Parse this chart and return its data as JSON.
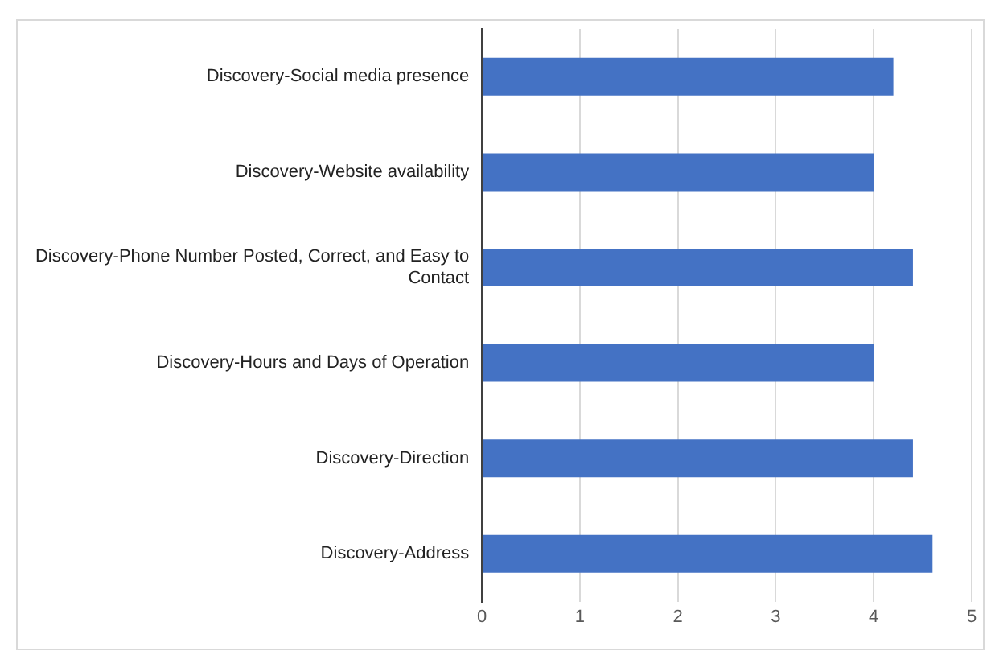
{
  "chart_data": {
    "type": "bar",
    "orientation": "horizontal",
    "categories": [
      "Discovery-Social media presence",
      "Discovery-Website availability",
      "Discovery-Phone Number Posted, Correct, and Easy to Contact",
      "Discovery-Hours and Days of Operation",
      "Discovery-Direction",
      "Discovery-Address"
    ],
    "values": [
      4.2,
      4.0,
      4.4,
      4.0,
      4.4,
      4.6
    ],
    "color": "#4472c4",
    "xlim": [
      0,
      5
    ],
    "xticks": [
      0,
      1,
      2,
      3,
      4,
      5
    ],
    "grid": "x",
    "legend": false
  }
}
